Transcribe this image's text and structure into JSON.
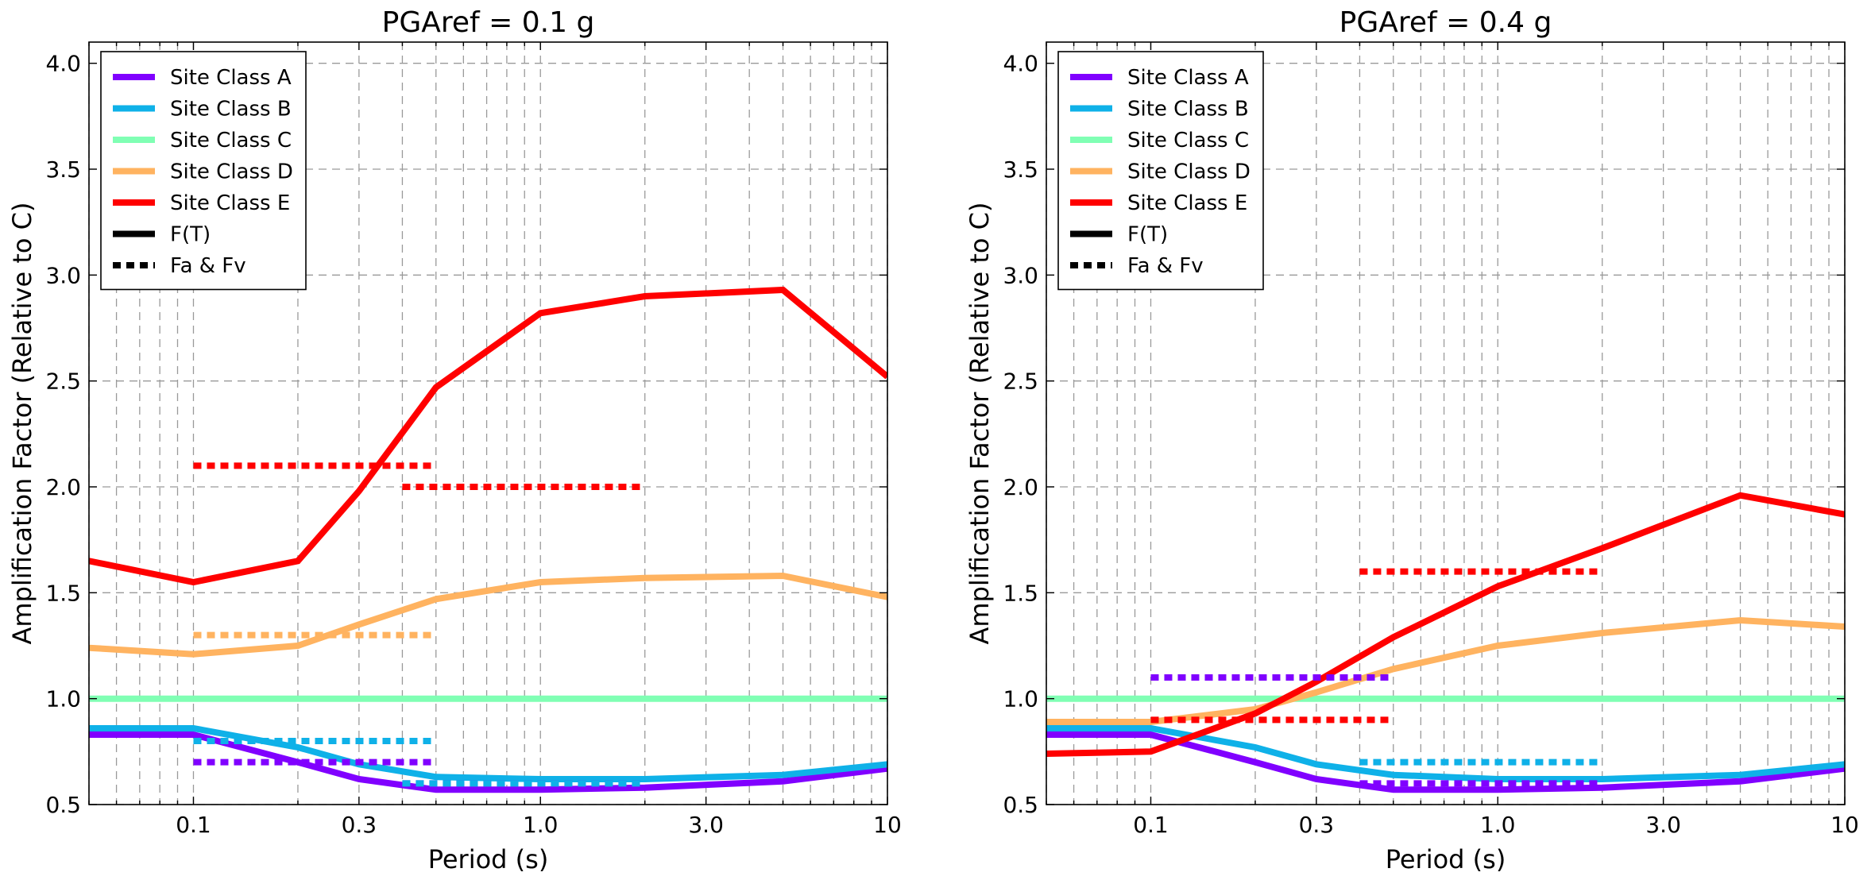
{
  "chart_data": [
    {
      "type": "line",
      "title": "PGAref = 0.1 g",
      "xlabel": "Period (s)",
      "ylabel": "Amplification Factor (Relative to C)",
      "xscale": "log",
      "xlim": [
        0.05,
        10
      ],
      "ylim": [
        0.5,
        4.1
      ],
      "xticks": [
        0.1,
        0.3,
        1.0,
        3.0,
        10
      ],
      "xtick_labels": [
        "0.1",
        "0.3",
        "1.0",
        "3.0",
        "10"
      ],
      "yticks": [
        0.5,
        1.0,
        1.5,
        2.0,
        2.5,
        3.0,
        3.5,
        4.0
      ],
      "ytick_labels": [
        "0.5",
        "1.0",
        "1.5",
        "2.0",
        "2.5",
        "3.0",
        "3.5",
        "4.0"
      ],
      "grid": true,
      "legend_position": "top-left",
      "legend": [
        {
          "label": "Site Class A",
          "color": "#8000ff",
          "style": "solid"
        },
        {
          "label": "Site Class B",
          "color": "#0fb1e8",
          "style": "solid"
        },
        {
          "label": "Site Class C",
          "color": "#80ffb4",
          "style": "solid"
        },
        {
          "label": "Site Class D",
          "color": "#ffb360",
          "style": "solid"
        },
        {
          "label": "Site Class E",
          "color": "#ff0000",
          "style": "solid"
        },
        {
          "label": "F(T)",
          "color": "#000000",
          "style": "solid"
        },
        {
          "label": "Fa & Fv",
          "color": "#000000",
          "style": "dotted"
        }
      ],
      "series": [
        {
          "name": "Site Class A",
          "color": "#8000ff",
          "x": [
            0.05,
            0.1,
            0.2,
            0.3,
            0.5,
            1.0,
            2.0,
            5.0,
            10
          ],
          "y": [
            0.83,
            0.83,
            0.7,
            0.62,
            0.57,
            0.57,
            0.58,
            0.61,
            0.67
          ]
        },
        {
          "name": "Site Class B",
          "color": "#0fb1e8",
          "x": [
            0.05,
            0.1,
            0.2,
            0.3,
            0.5,
            1.0,
            2.0,
            5.0,
            10
          ],
          "y": [
            0.86,
            0.86,
            0.77,
            0.69,
            0.63,
            0.62,
            0.62,
            0.64,
            0.69
          ]
        },
        {
          "name": "Site Class C",
          "color": "#80ffb4",
          "x": [
            0.05,
            10
          ],
          "y": [
            1.0,
            1.0
          ]
        },
        {
          "name": "Site Class D",
          "color": "#ffb360",
          "x": [
            0.05,
            0.1,
            0.2,
            0.3,
            0.5,
            1.0,
            2.0,
            5.0,
            10
          ],
          "y": [
            1.24,
            1.21,
            1.25,
            1.35,
            1.47,
            1.55,
            1.57,
            1.58,
            1.48
          ]
        },
        {
          "name": "Site Class E",
          "color": "#ff0000",
          "x": [
            0.05,
            0.1,
            0.2,
            0.3,
            0.5,
            1.0,
            2.0,
            5.0,
            10
          ],
          "y": [
            1.65,
            1.55,
            1.65,
            1.98,
            2.47,
            2.82,
            2.9,
            2.93,
            2.52
          ]
        }
      ],
      "fa_fv": [
        {
          "site": "Site Class A",
          "color": "#8000ff",
          "segments": [
            {
              "x": [
                0.1,
                0.5
              ],
              "y": 0.7
            },
            {
              "x": [
                0.4,
                2.0
              ],
              "y": 0.6
            }
          ]
        },
        {
          "site": "Site Class B",
          "color": "#0fb1e8",
          "segments": [
            {
              "x": [
                0.1,
                0.5
              ],
              "y": 0.8
            },
            {
              "x": [
                0.4,
                2.0
              ],
              "y": 0.6
            }
          ]
        },
        {
          "site": "Site Class D",
          "color": "#ffb360",
          "segments": [
            {
              "x": [
                0.1,
                0.5
              ],
              "y": 1.3
            }
          ]
        },
        {
          "site": "Site Class E",
          "color": "#ff0000",
          "segments": [
            {
              "x": [
                0.1,
                0.5
              ],
              "y": 2.1
            },
            {
              "x": [
                0.4,
                2.0
              ],
              "y": 2.0
            }
          ]
        }
      ]
    },
    {
      "type": "line",
      "title": "PGAref = 0.4 g",
      "xlabel": "Period (s)",
      "ylabel": "Amplification Factor (Relative to C)",
      "xscale": "log",
      "xlim": [
        0.05,
        10
      ],
      "ylim": [
        0.5,
        4.1
      ],
      "xticks": [
        0.1,
        0.3,
        1.0,
        3.0,
        10
      ],
      "xtick_labels": [
        "0.1",
        "0.3",
        "1.0",
        "3.0",
        "10"
      ],
      "yticks": [
        0.5,
        1.0,
        1.5,
        2.0,
        2.5,
        3.0,
        3.5,
        4.0
      ],
      "ytick_labels": [
        "0.5",
        "1.0",
        "1.5",
        "2.0",
        "2.5",
        "3.0",
        "3.5",
        "4.0"
      ],
      "grid": true,
      "legend_position": "top-left",
      "legend": [
        {
          "label": "Site Class A",
          "color": "#8000ff",
          "style": "solid"
        },
        {
          "label": "Site Class B",
          "color": "#0fb1e8",
          "style": "solid"
        },
        {
          "label": "Site Class C",
          "color": "#80ffb4",
          "style": "solid"
        },
        {
          "label": "Site Class D",
          "color": "#ffb360",
          "style": "solid"
        },
        {
          "label": "Site Class E",
          "color": "#ff0000",
          "style": "solid"
        },
        {
          "label": "F(T)",
          "color": "#000000",
          "style": "solid"
        },
        {
          "label": "Fa & Fv",
          "color": "#000000",
          "style": "dotted"
        }
      ],
      "series": [
        {
          "name": "Site Class A",
          "color": "#8000ff",
          "x": [
            0.05,
            0.1,
            0.2,
            0.3,
            0.5,
            1.0,
            2.0,
            5.0,
            10
          ],
          "y": [
            0.83,
            0.83,
            0.7,
            0.62,
            0.57,
            0.57,
            0.58,
            0.61,
            0.67
          ]
        },
        {
          "name": "Site Class B",
          "color": "#0fb1e8",
          "x": [
            0.05,
            0.1,
            0.2,
            0.3,
            0.5,
            1.0,
            2.0,
            5.0,
            10
          ],
          "y": [
            0.86,
            0.86,
            0.77,
            0.69,
            0.64,
            0.62,
            0.62,
            0.64,
            0.69
          ]
        },
        {
          "name": "Site Class C",
          "color": "#80ffb4",
          "x": [
            0.05,
            10
          ],
          "y": [
            1.0,
            1.0
          ]
        },
        {
          "name": "Site Class D",
          "color": "#ffb360",
          "x": [
            0.05,
            0.1,
            0.2,
            0.3,
            0.5,
            1.0,
            2.0,
            5.0,
            10
          ],
          "y": [
            0.89,
            0.89,
            0.95,
            1.03,
            1.14,
            1.25,
            1.31,
            1.37,
            1.34
          ]
        },
        {
          "name": "Site Class E",
          "color": "#ff0000",
          "x": [
            0.05,
            0.1,
            0.2,
            0.3,
            0.5,
            1.0,
            2.0,
            5.0,
            10
          ],
          "y": [
            0.74,
            0.75,
            0.93,
            1.08,
            1.29,
            1.53,
            1.71,
            1.96,
            1.87
          ]
        }
      ],
      "fa_fv": [
        {
          "site": "Site Class A",
          "color": "#8000ff",
          "segments": [
            {
              "x": [
                0.1,
                0.5
              ],
              "y": 1.1
            },
            {
              "x": [
                0.4,
                2.0
              ],
              "y": 0.6
            }
          ]
        },
        {
          "site": "Site Class B",
          "color": "#0fb1e8",
          "segments": [
            {
              "x": [
                0.4,
                2.0
              ],
              "y": 0.7
            }
          ]
        },
        {
          "site": "Site Class E",
          "color": "#ff0000",
          "segments": [
            {
              "x": [
                0.1,
                0.5
              ],
              "y": 0.9
            },
            {
              "x": [
                0.4,
                2.0
              ],
              "y": 1.6
            }
          ]
        }
      ]
    }
  ]
}
